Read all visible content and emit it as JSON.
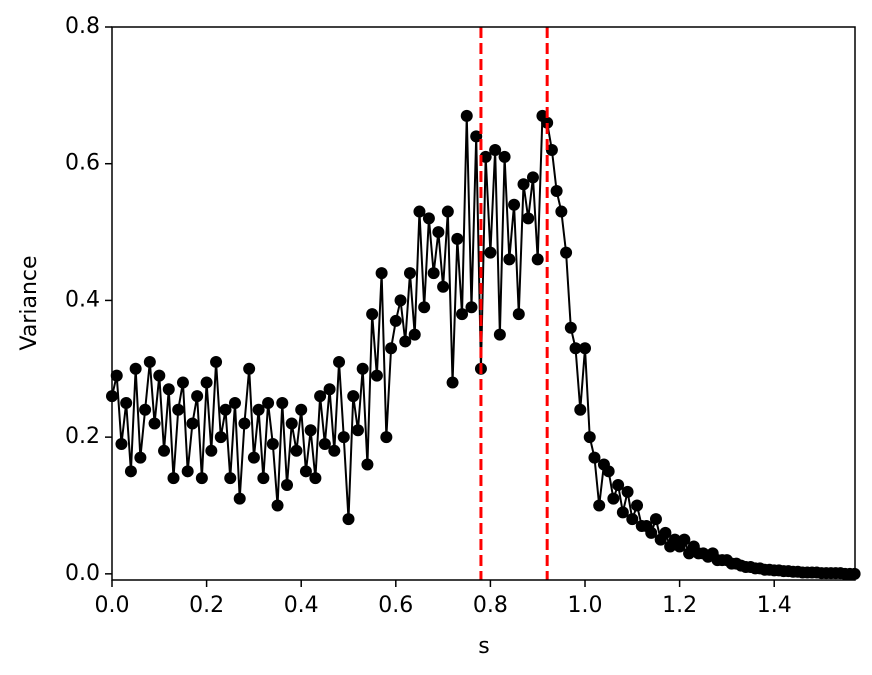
{
  "chart_data": {
    "type": "line",
    "xlabel": "s",
    "ylabel": "Variance",
    "x": [
      0,
      0.01,
      0.02,
      0.03,
      0.04,
      0.05,
      0.06,
      0.07,
      0.08,
      0.09,
      0.1,
      0.11,
      0.12,
      0.13,
      0.14,
      0.15,
      0.16,
      0.17,
      0.18,
      0.19,
      0.2,
      0.21,
      0.22,
      0.23,
      0.24,
      0.25,
      0.26,
      0.27,
      0.28,
      0.29,
      0.3,
      0.31,
      0.32,
      0.33,
      0.34,
      0.35,
      0.36,
      0.37,
      0.38,
      0.39,
      0.4,
      0.41,
      0.42,
      0.43,
      0.44,
      0.45,
      0.46,
      0.47,
      0.48,
      0.49,
      0.5,
      0.51,
      0.52,
      0.53,
      0.54,
      0.55,
      0.56,
      0.57,
      0.58,
      0.59,
      0.6,
      0.61,
      0.62,
      0.63,
      0.64,
      0.65,
      0.66,
      0.67,
      0.68,
      0.69,
      0.7,
      0.71,
      0.72,
      0.73,
      0.74,
      0.75,
      0.76,
      0.77,
      0.78,
      0.79,
      0.8,
      0.81,
      0.82,
      0.83,
      0.84,
      0.85,
      0.86,
      0.87,
      0.88,
      0.89,
      0.9,
      0.91,
      0.92,
      0.93,
      0.94,
      0.95,
      0.96,
      0.97,
      0.98,
      0.99,
      1,
      1.01,
      1.02,
      1.03,
      1.04,
      1.05,
      1.06,
      1.07,
      1.08,
      1.09,
      1.1,
      1.11,
      1.12,
      1.13,
      1.14,
      1.15,
      1.16,
      1.17,
      1.18,
      1.19,
      1.2,
      1.21,
      1.22,
      1.23,
      1.24,
      1.25,
      1.26,
      1.27,
      1.28,
      1.29,
      1.3,
      1.31,
      1.32,
      1.33,
      1.34,
      1.35,
      1.36,
      1.37,
      1.38,
      1.39,
      1.4,
      1.41,
      1.42,
      1.43,
      1.44,
      1.45,
      1.46,
      1.47,
      1.48,
      1.49,
      1.5,
      1.51,
      1.52,
      1.53,
      1.54,
      1.55,
      1.56,
      1.57
    ],
    "values": [
      0.26,
      0.29,
      0.19,
      0.25,
      0.15,
      0.3,
      0.17,
      0.24,
      0.31,
      0.22,
      0.29,
      0.18,
      0.27,
      0.14,
      0.24,
      0.28,
      0.15,
      0.22,
      0.26,
      0.14,
      0.28,
      0.18,
      0.31,
      0.2,
      0.24,
      0.14,
      0.25,
      0.11,
      0.22,
      0.3,
      0.17,
      0.24,
      0.14,
      0.25,
      0.19,
      0.1,
      0.25,
      0.13,
      0.22,
      0.18,
      0.24,
      0.15,
      0.21,
      0.14,
      0.26,
      0.19,
      0.27,
      0.18,
      0.31,
      0.2,
      0.08,
      0.26,
      0.21,
      0.3,
      0.16,
      0.38,
      0.29,
      0.44,
      0.2,
      0.33,
      0.37,
      0.4,
      0.34,
      0.44,
      0.35,
      0.53,
      0.39,
      0.52,
      0.44,
      0.5,
      0.42,
      0.53,
      0.28,
      0.49,
      0.38,
      0.67,
      0.39,
      0.64,
      0.3,
      0.61,
      0.47,
      0.62,
      0.35,
      0.61,
      0.46,
      0.54,
      0.38,
      0.57,
      0.52,
      0.58,
      0.46,
      0.67,
      0.66,
      0.62,
      0.56,
      0.53,
      0.47,
      0.36,
      0.33,
      0.24,
      0.33,
      0.2,
      0.17,
      0.1,
      0.16,
      0.15,
      0.11,
      0.13,
      0.09,
      0.12,
      0.08,
      0.1,
      0.07,
      0.07,
      0.06,
      0.08,
      0.05,
      0.06,
      0.04,
      0.05,
      0.04,
      0.05,
      0.03,
      0.04,
      0.03,
      0.03,
      0.025,
      0.03,
      0.02,
      0.02,
      0.02,
      0.015,
      0.015,
      0.012,
      0.01,
      0.01,
      0.008,
      0.008,
      0.006,
      0.006,
      0.005,
      0.005,
      0.004,
      0.004,
      0.003,
      0.003,
      0.002,
      0.002,
      0.002,
      0.002,
      0.001,
      0.001,
      0.001,
      0.001,
      0.001,
      0,
      0,
      0
    ],
    "color": "#000000",
    "vlines": [
      0.78,
      0.92
    ],
    "vline_color": "#ff0000",
    "xlim": [
      0,
      1.5708
    ],
    "ylim": [
      -0.009,
      0.8
    ],
    "xticks": [
      {
        "value": 0,
        "label": "0.0"
      },
      0.2,
      0.4,
      0.6,
      0.8,
      {
        "value": 1,
        "label": "1.0"
      },
      1.2,
      1.4
    ],
    "yticks": [
      {
        "value": 0,
        "label": "0.0"
      },
      0.2,
      0.4,
      0.6,
      0.8
    ],
    "grid": false
  }
}
